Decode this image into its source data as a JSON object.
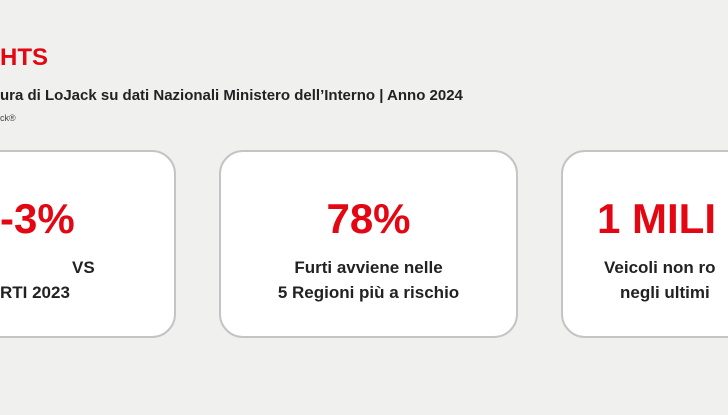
{
  "header": {
    "title": "HTS",
    "subtitle": "ura di LoJack su dati Nazionali Ministero dell’Interno | Anno 2024",
    "source": "ck®"
  },
  "cards": [
    {
      "figure": "-3%",
      "lines": [
        "VS",
        "RTI 2023"
      ]
    },
    {
      "figure": "78%",
      "lines": [
        "Furti avviene nelle",
        "5 Regioni più a rischio"
      ]
    },
    {
      "figure": "1 MILI",
      "lines": [
        "Veicoli non ro",
        "negli ultimi"
      ]
    }
  ]
}
